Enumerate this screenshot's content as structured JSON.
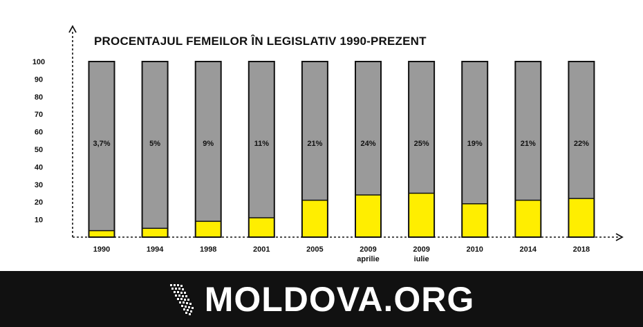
{
  "chart_data": {
    "type": "bar",
    "title": "PROCENTAJUL FEMEILOR ÎN LEGISLATIV 1990-PREZENT",
    "xlabel": "",
    "ylabel": "",
    "ylim": [
      0,
      100
    ],
    "yticks": [
      10,
      20,
      30,
      40,
      50,
      60,
      70,
      80,
      90,
      100
    ],
    "categories": [
      [
        "1990"
      ],
      [
        "1994"
      ],
      [
        "1998"
      ],
      [
        "2001"
      ],
      [
        "2005"
      ],
      [
        "2009",
        "aprilie"
      ],
      [
        "2009",
        "iulie"
      ],
      [
        "2010"
      ],
      [
        "2014"
      ],
      [
        "2018"
      ]
    ],
    "values": [
      3.7,
      5,
      9,
      11,
      21,
      24,
      25,
      19,
      21,
      22
    ],
    "data_labels": [
      "3,7%",
      "5%",
      "9%",
      "11%",
      "21%",
      "24%",
      "25%",
      "19%",
      "21%",
      "22%"
    ],
    "stacked_total": 100,
    "legend": "none",
    "grid": false,
    "colors": {
      "women": "#ffee00",
      "rest": "#9a9a9a",
      "outline": "#111111",
      "axis": "#111111"
    }
  },
  "footer": {
    "brand": "MOLDOVA.ORG",
    "background": "#111111",
    "text_color": "#ffffff"
  }
}
